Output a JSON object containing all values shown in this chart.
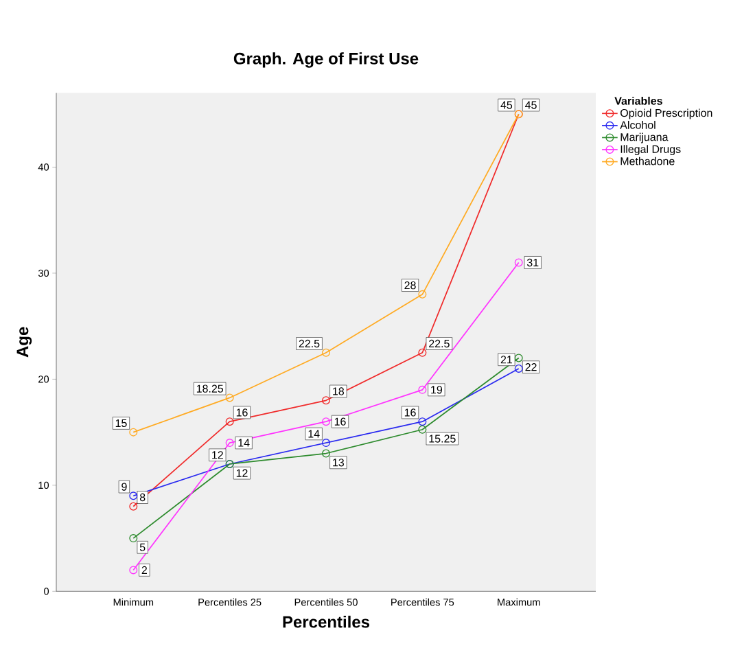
{
  "chart_data": {
    "type": "line",
    "title": "Graph.  Age of First Use",
    "xlabel": "Percentiles",
    "ylabel": "Age",
    "legend_title": "Variables",
    "categories": [
      "Minimum",
      "Percentiles 25",
      "Percentiles 50",
      "Percentiles 75",
      "Maximum"
    ],
    "series": [
      {
        "name": "Opioid Prescription",
        "color": "#f02a2a",
        "values": [
          8,
          16,
          18,
          22.5,
          45
        ]
      },
      {
        "name": "Alcohol",
        "color": "#2a2af0",
        "values": [
          9,
          12,
          14,
          16,
          21
        ]
      },
      {
        "name": "Marijuana",
        "color": "#2e8b2e",
        "values": [
          5,
          12,
          13,
          15.25,
          22
        ]
      },
      {
        "name": "Illegal Drugs",
        "color": "#ff33ff",
        "values": [
          2,
          14,
          16,
          19,
          31
        ]
      },
      {
        "name": "Methadone",
        "color": "#ffaa22",
        "values": [
          15,
          18.25,
          22.5,
          28,
          45
        ]
      }
    ],
    "ylim": [
      0,
      47
    ],
    "yticks": [
      0,
      10,
      20,
      30,
      40
    ],
    "grid": false,
    "legend": "top right",
    "marker": "circle",
    "line_style": "solid",
    "data_labels": true
  }
}
